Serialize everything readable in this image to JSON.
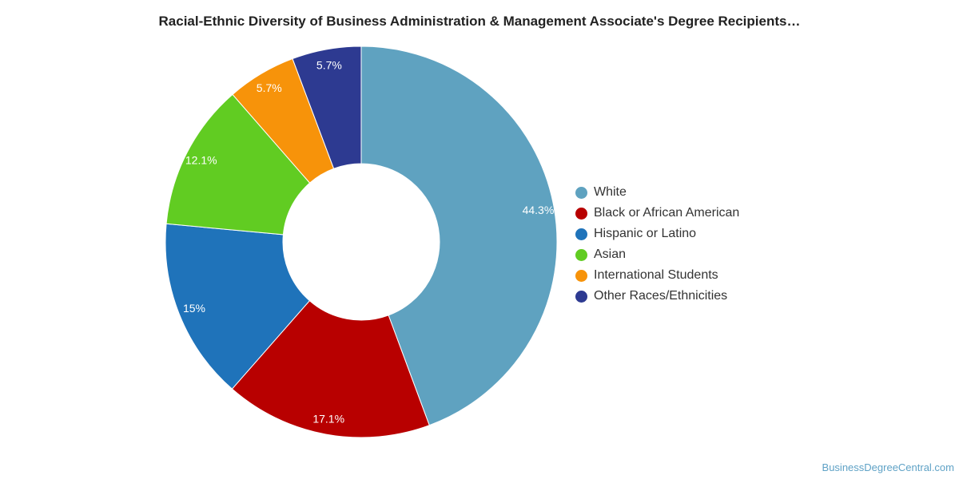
{
  "chart_data": {
    "type": "pie",
    "title": "Racial-Ethnic Diversity of Business Administration & Management Associate's Degree Recipients…",
    "donut": true,
    "legend_position": "right",
    "slices": [
      {
        "label": "White",
        "value": 44.3,
        "display": "44.3%",
        "color": "#5fa2c0"
      },
      {
        "label": "Black or African American",
        "value": 17.1,
        "display": "17.1%",
        "color": "#b80000"
      },
      {
        "label": "Hispanic or Latino",
        "value": 15,
        "display": "15%",
        "color": "#1f73ba"
      },
      {
        "label": "Asian",
        "value": 12.1,
        "display": "12.1%",
        "color": "#61cc22"
      },
      {
        "label": "International Students",
        "value": 5.7,
        "display": "5.7%",
        "color": "#f7930a"
      },
      {
        "label": "Other Races/Ethnicities",
        "value": 5.7,
        "display": "5.7%",
        "color": "#2d3a91"
      }
    ]
  },
  "watermark": "BusinessDegreeCentral.com"
}
